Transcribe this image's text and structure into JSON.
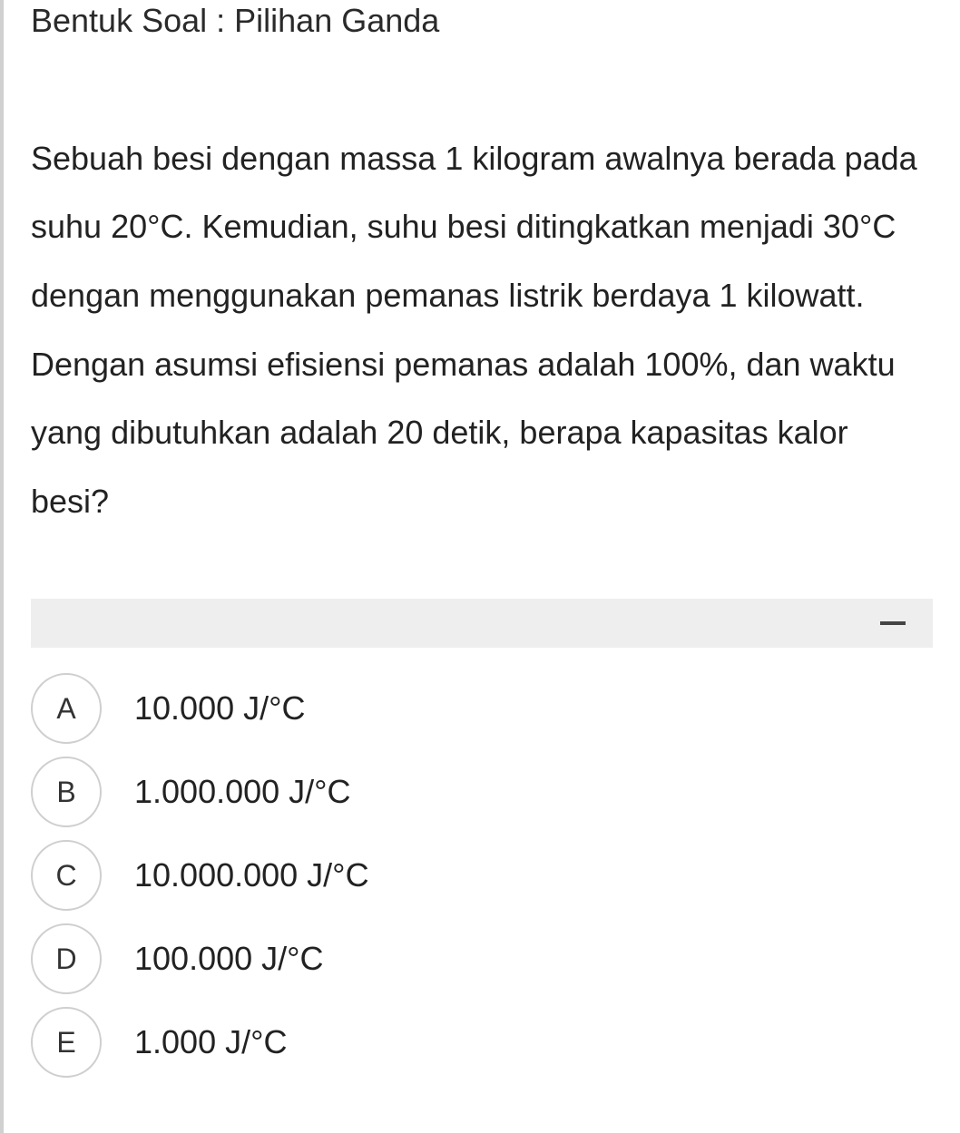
{
  "header": {
    "label": "Bentuk Soal : Pilihan Ganda"
  },
  "question": {
    "text": "Sebuah besi dengan massa 1 kilogram awalnya berada pada suhu 20°C. Kemudian, suhu besi ditingkatkan menjadi 30°C dengan menggunakan pemanas listrik berdaya 1 kilowatt. Dengan asumsi efisiensi pemanas adalah 100%, dan waktu yang dibutuhkan adalah 20 detik, berapa kapasitas kalor besi?"
  },
  "separator": {
    "background_color": "#eeeeee",
    "minus_color": "#444444"
  },
  "options": [
    {
      "letter": "A",
      "text": "10.000 J/°C"
    },
    {
      "letter": "B",
      "text": "1.000.000 J/°C"
    },
    {
      "letter": "C",
      "text": "10.000.000 J/°C"
    },
    {
      "letter": "D",
      "text": "100.000 J/°C"
    },
    {
      "letter": "E",
      "text": "1.000 J/°C"
    }
  ],
  "styling": {
    "page_border_color": "#d0d0d0",
    "text_color": "#222222",
    "circle_border_color": "#cfcfcf",
    "font_size_body": 36,
    "font_size_option": 36,
    "line_height_question": 2.1
  }
}
